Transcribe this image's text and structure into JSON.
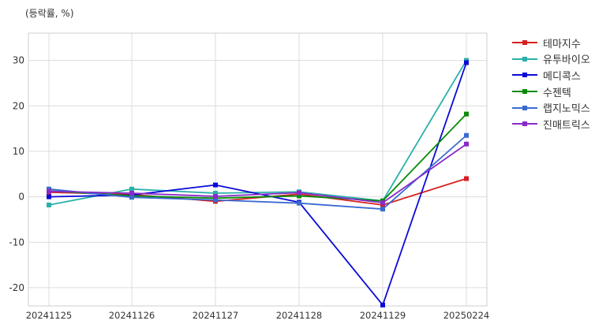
{
  "unit_label": "(등락률, %)",
  "chart_data": {
    "type": "line",
    "ylabel": "(등락률, %)",
    "categories": [
      "20241125",
      "20241126",
      "20241127",
      "20241128",
      "20241129",
      "20250224"
    ],
    "ylim": [
      -24,
      36
    ],
    "yticks": [
      -20,
      -10,
      0,
      10,
      20,
      30
    ],
    "grid": true,
    "legend_position": "outside-top-right",
    "series": [
      {
        "name": "테마지수",
        "color": "#d62020",
        "values": [
          1.0,
          0.5,
          -1.0,
          0.6,
          -1.8,
          4.0
        ]
      },
      {
        "name": "유투바이오",
        "color": "#2ab0a8",
        "values": [
          -1.8,
          1.7,
          0.8,
          1.1,
          -0.9,
          30.0
        ]
      },
      {
        "name": "메디콕스",
        "color": "#0a0ad8",
        "values": [
          0.0,
          0.4,
          2.6,
          -1.2,
          -23.8,
          29.5
        ]
      },
      {
        "name": "수젠텍",
        "color": "#0a8a0a",
        "values": [
          1.3,
          0.2,
          -0.3,
          0.2,
          -0.9,
          18.2
        ]
      },
      {
        "name": "랩지노믹스",
        "color": "#3a6ad0",
        "values": [
          1.7,
          -0.1,
          -0.7,
          -1.4,
          -2.7,
          13.5
        ]
      },
      {
        "name": "진매트릭스",
        "color": "#8a2ac8",
        "values": [
          1.2,
          0.8,
          0.1,
          0.9,
          -1.3,
          11.6
        ]
      }
    ]
  }
}
